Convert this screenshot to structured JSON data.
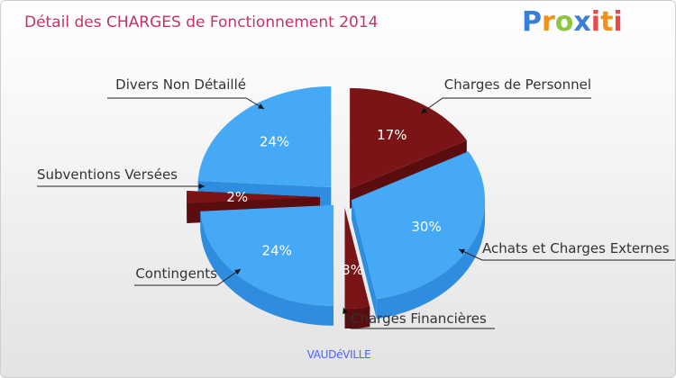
{
  "header": {
    "title": "Détail des CHARGES de Fonctionnement 2014",
    "logo_text": "Proxiti"
  },
  "footer": {
    "commune": "VAUDéVILLE"
  },
  "colors": {
    "blue_top": "#45a9f5",
    "blue_side": "#2f8ddf",
    "red_top": "#7a1416",
    "red_side": "#5a0c0e",
    "title": "#c2336c"
  },
  "chart_data": {
    "type": "pie",
    "title": "Détail des CHARGES de Fonctionnement 2014",
    "subtitle": "VAUDéVILLE",
    "unit": "%",
    "slices": [
      {
        "name": "Charges de Personnel",
        "value": 17,
        "label": "17%",
        "color": "red"
      },
      {
        "name": "Achats et Charges Externes",
        "value": 30,
        "label": "30%",
        "color": "blue"
      },
      {
        "name": "Charges Financières",
        "value": 3,
        "label": "3%",
        "color": "red"
      },
      {
        "name": "Contingents",
        "value": 24,
        "label": "24%",
        "color": "blue"
      },
      {
        "name": "Subventions Versées",
        "value": 2,
        "label": "2%",
        "color": "red"
      },
      {
        "name": "Divers Non Détaillé",
        "value": 24,
        "label": "24%",
        "color": "blue"
      }
    ]
  }
}
